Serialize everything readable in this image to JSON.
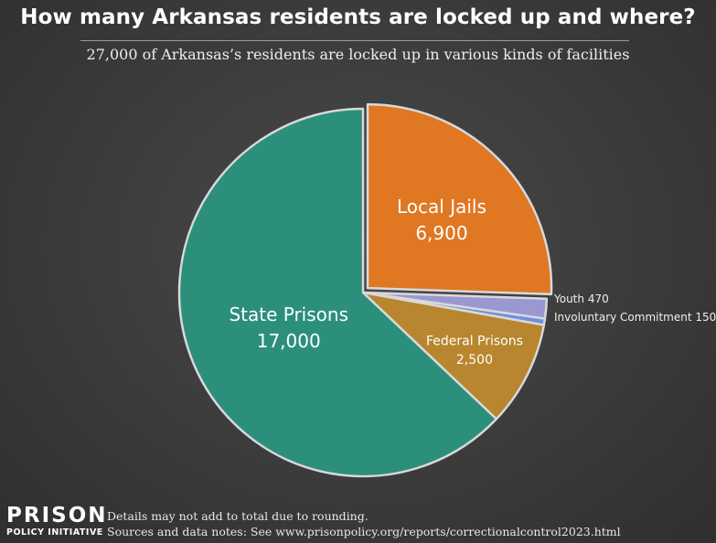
{
  "header": {
    "title": "How many Arkansas residents are locked up and where?",
    "subtitle": "27,000 of Arkansas’s residents are locked up in various kinds of facilities"
  },
  "footer": {
    "logo_line1": "PRISON",
    "logo_line2": "POLICY INITIATIVE",
    "note1": "Details may not add to total due to rounding.",
    "note2": "Sources and data notes: See www.prisonpolicy.org/reports/correctionalcontrol2023.html"
  },
  "chart_data": {
    "type": "pie",
    "title": "How many Arkansas residents are locked up and where?",
    "subtitle": "27,000 of Arkansas’s residents are locked up in various kinds of facilities",
    "total": 27000,
    "slices": [
      {
        "name": "Local Jails",
        "value": 6900,
        "value_label": "6,900",
        "color": "#e07722"
      },
      {
        "name": "Youth",
        "value": 470,
        "value_label": "470",
        "color": "#9a98d0"
      },
      {
        "name": "Involuntary Commitment",
        "value": 150,
        "value_label": "150",
        "color": "#6f8fe6"
      },
      {
        "name": "Federal Prisons",
        "value": 2500,
        "value_label": "2,500",
        "color": "#b8862f"
      },
      {
        "name": "State Prisons",
        "value": 17000,
        "value_label": "17,000",
        "color": "#2b8f7c"
      }
    ],
    "legend": "none"
  }
}
